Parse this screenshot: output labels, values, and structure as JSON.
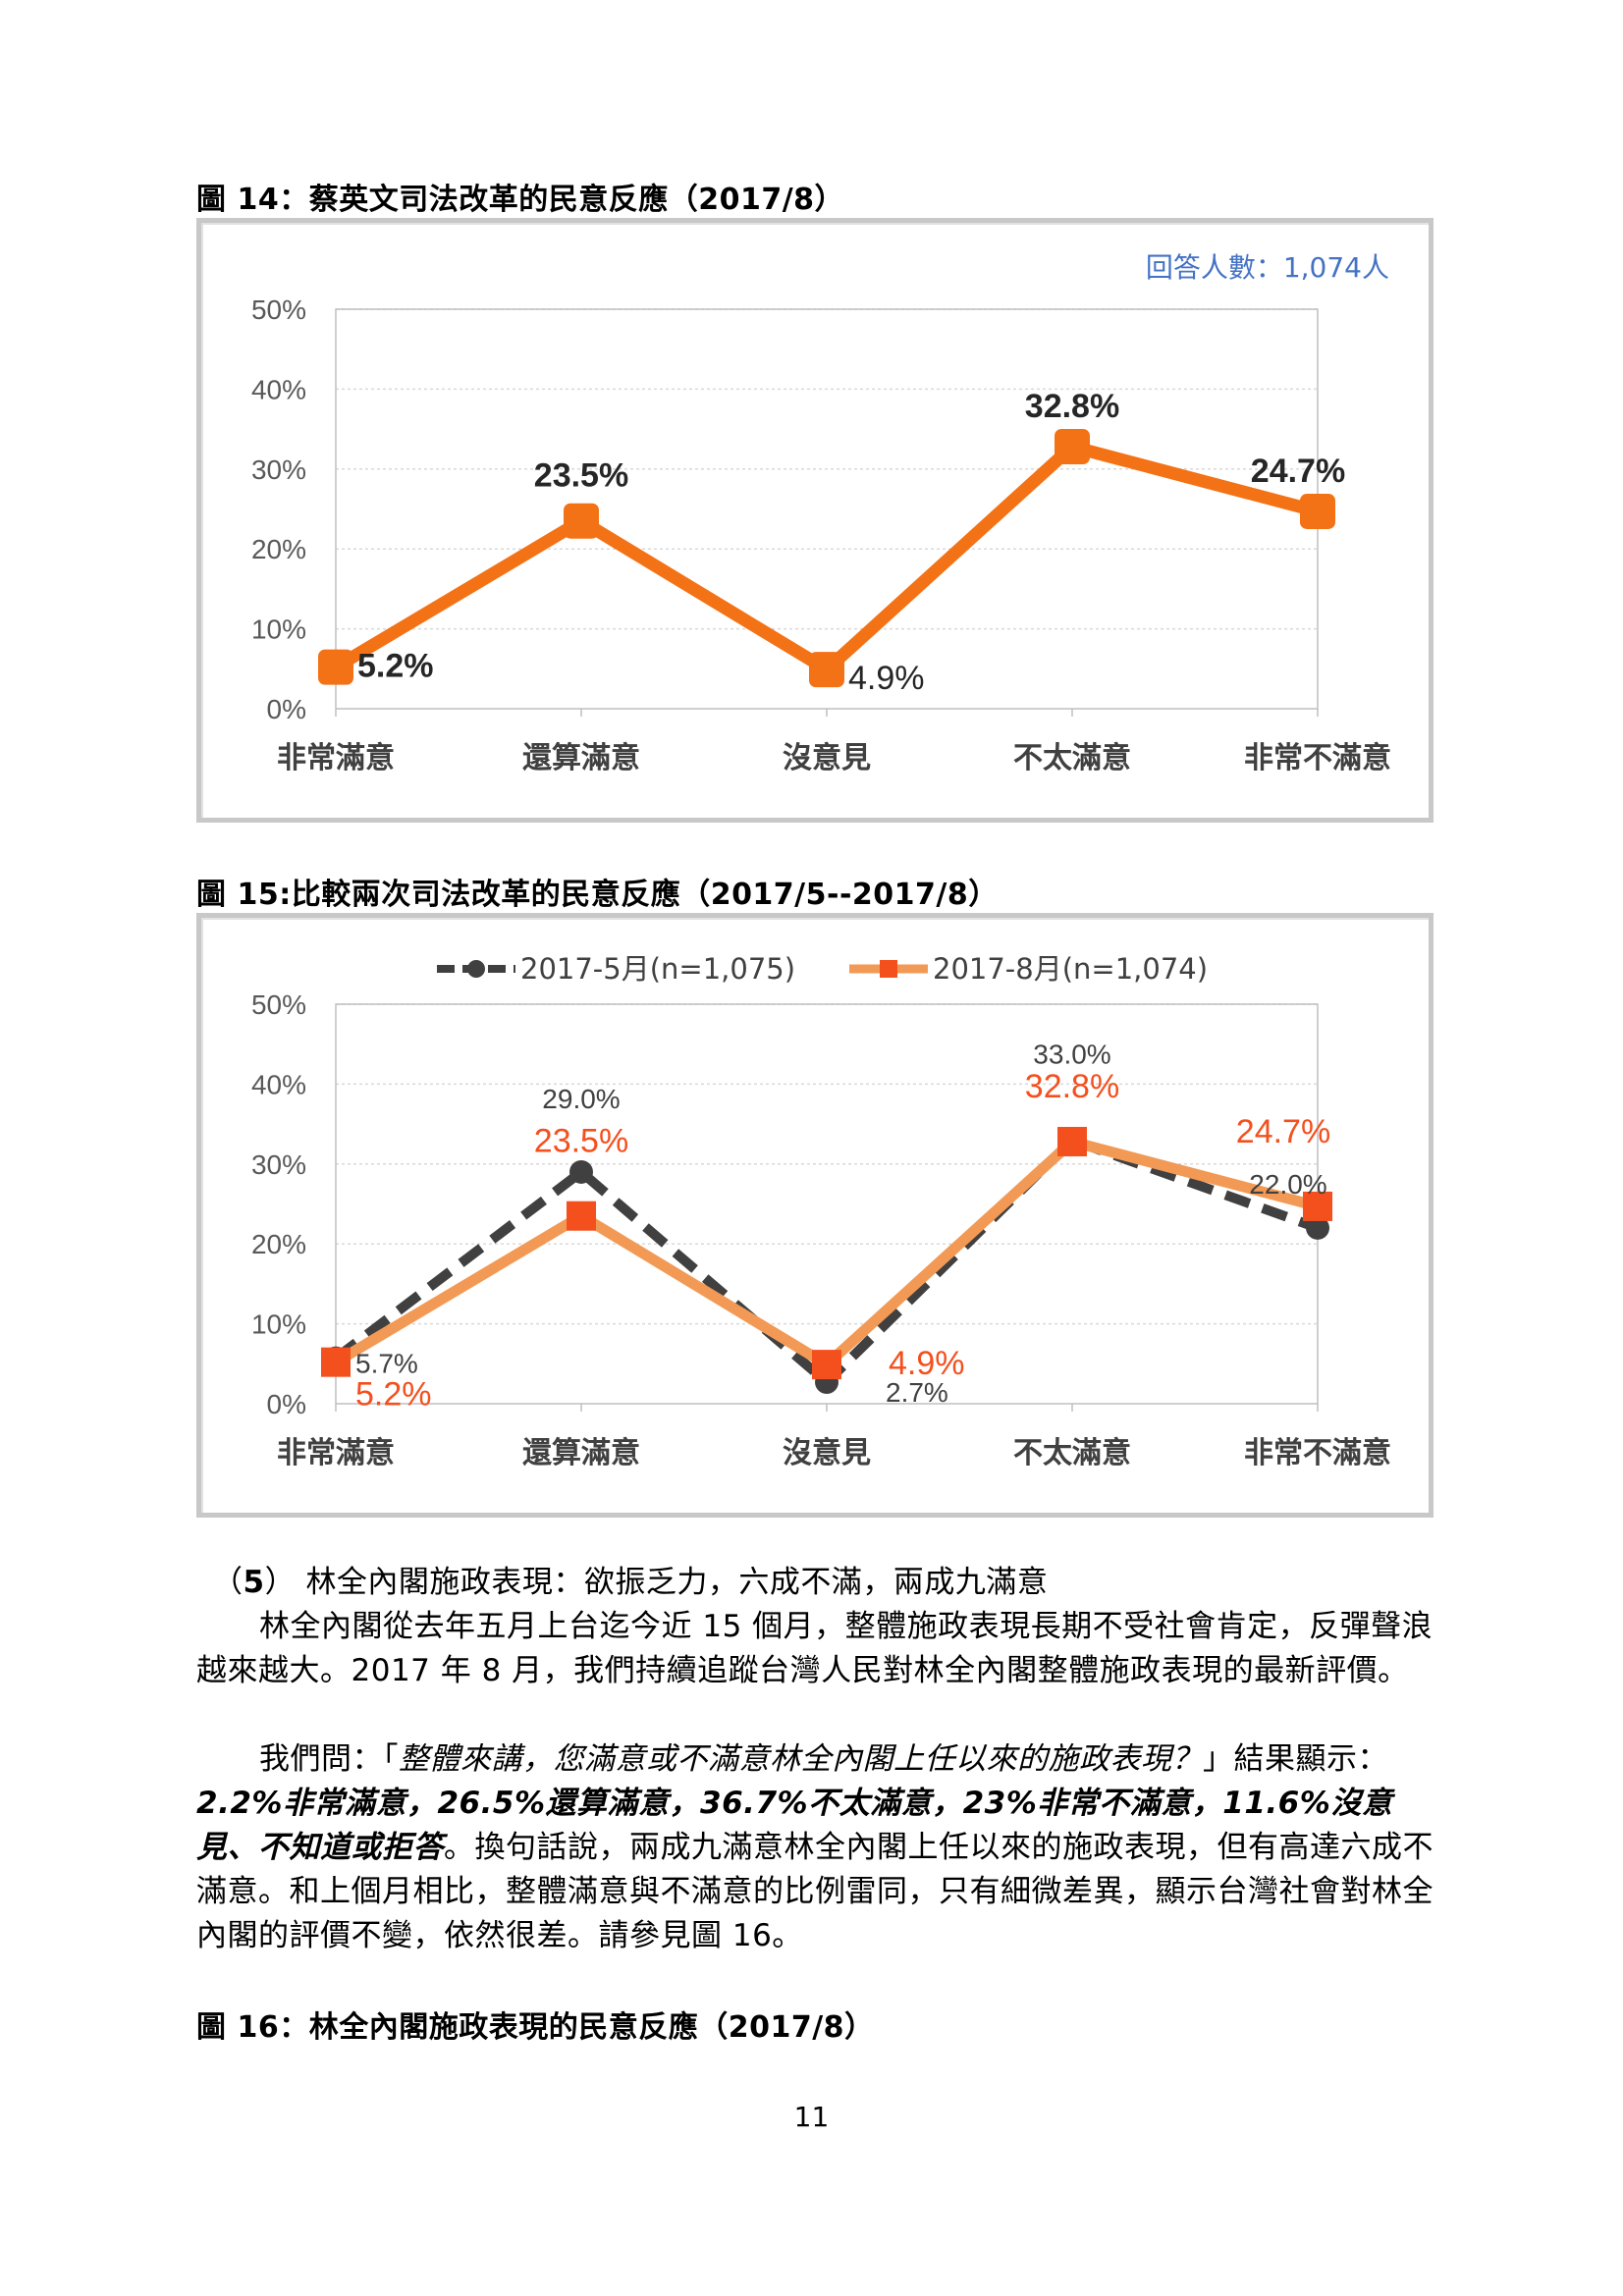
{
  "figure14": {
    "caption": "圖 14：蔡英文司法改革的民意反應（2017/8）",
    "note": "回答人數：1,074人",
    "chart_data": {
      "type": "line",
      "title": "",
      "categories": [
        "非常滿意",
        "還算滿意",
        "沒意見",
        "不太滿意",
        "非常不滿意"
      ],
      "series": [
        {
          "name": "",
          "values": [
            5.2,
            23.5,
            4.9,
            32.8,
            24.7
          ],
          "color": "#f47216"
        }
      ],
      "data_labels": [
        "5.2%",
        "23.5%",
        "4.9%",
        "32.8%",
        "24.7%"
      ],
      "y_ticks": [
        "0%",
        "10%",
        "20%",
        "30%",
        "40%",
        "50%"
      ],
      "ylim": [
        0,
        50
      ],
      "grid": true
    }
  },
  "figure15": {
    "caption": "圖 15:比較兩次司法改革的民意反應（2017/5--2017/8）",
    "chart_data": {
      "type": "line",
      "title": "",
      "categories": [
        "非常滿意",
        "還算滿意",
        "沒意見",
        "不太滿意",
        "非常不滿意"
      ],
      "series": [
        {
          "name": "2017-5月(n=1,075)",
          "values": [
            5.7,
            29.0,
            2.7,
            33.0,
            22.0
          ],
          "color": "#404040",
          "style": "dashed",
          "labels": [
            "5.7%",
            "29.0%",
            "2.7%",
            "33.0%",
            "22.0%"
          ]
        },
        {
          "name": "2017-8月(n=1,074)",
          "values": [
            5.2,
            23.5,
            4.9,
            32.8,
            24.7
          ],
          "color": "#f29a55",
          "marker_color": "#f4501e",
          "style": "solid",
          "labels": [
            "5.2%",
            "23.5%",
            "4.9%",
            "32.8%",
            "24.7%"
          ]
        }
      ],
      "y_ticks": [
        "0%",
        "10%",
        "20%",
        "30%",
        "40%",
        "50%"
      ],
      "ylim": [
        0,
        50
      ],
      "legend": "top",
      "grid": true
    }
  },
  "section5": {
    "heading_num": "5",
    "heading_text": "林全內閣施政表現：欲振乏力，六成不滿，兩成九滿意",
    "para1": "林全內閣從去年五月上台迄今近 15 個月，整體施政表現長期不受社會肯定，反彈聲浪越來越大。2017 年 8 月，我們持續追蹤台灣人民對林全內閣整體施政表現的最新評價。",
    "para2_a": "我們問：「",
    "para2_q": "整體來講，您滿意或不滿意林全內閣上任以來的施政表現？",
    "para2_b": "」結果顯示：",
    "para2_stats": "2.2%非常滿意，26.5%還算滿意，36.7%不太滿意，23%非常不滿意，11.6%沒意見、不知道或拒答",
    "para2_c": "。換句話說，兩成九滿意林全內閣上任以來的施政表現，但有高達六成不滿意。和上個月相比，整體滿意與不滿意的比例雷同，只有細微差異，顯示台灣社會對林全內閣的評價不變，依然很差。請參見圖 16。"
  },
  "figure16": {
    "caption": "圖 16：林全內閣施政表現的民意反應（2017/8）"
  },
  "page_number": "11"
}
